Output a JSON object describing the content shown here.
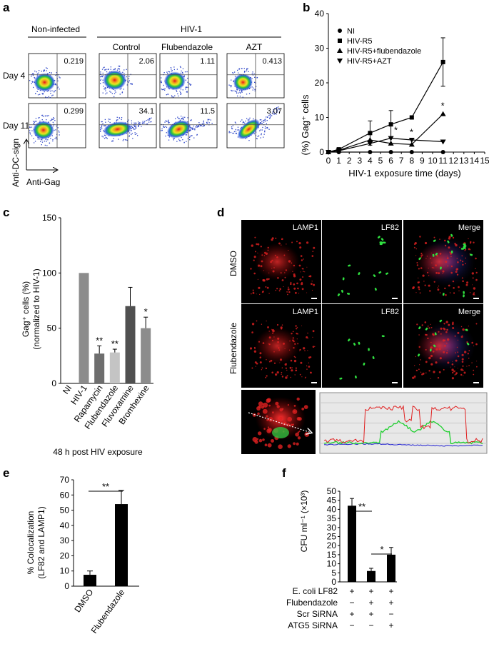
{
  "panels": {
    "a": {
      "label": "a",
      "header_noninfected": "Non-infected",
      "header_hiv": "HIV-1",
      "col_control": "Control",
      "col_flubendazole": "Flubendazole",
      "col_azt": "AZT",
      "row_day4": "Day 4",
      "row_day11": "Day 11",
      "y_axis_label": "Anti-DC-sign",
      "x_axis_label": "Anti-Gag",
      "day4_values": [
        "0.219",
        "2.06",
        "1.11",
        "0.413"
      ],
      "day11_values": [
        "0.299",
        "34.1",
        "11.5",
        "3.07"
      ]
    },
    "b": {
      "label": "b",
      "y_label": "(%) Gag⁺ cells",
      "x_label": "HIV-1 exposure time (days)",
      "legend": [
        "NI",
        "HIV-R5",
        "HIV-R5+flubendazole",
        "HIV-R5+AZT"
      ],
      "xticks": [
        "0",
        "1",
        "2",
        "3",
        "4",
        "5",
        "6",
        "7",
        "8",
        "9",
        "10",
        "11",
        "12",
        "13",
        "14",
        "15"
      ],
      "yticks": [
        "0",
        "10",
        "20",
        "30",
        "40"
      ],
      "asterisk": "*"
    },
    "c": {
      "label": "c",
      "y_label_line1": "Gag⁺ cells (%)",
      "y_label_line2": "(normalized to HIV-1)",
      "yticks": [
        "0",
        "50",
        "100",
        "150"
      ],
      "x_title": "48 h post HIV exposure",
      "stars": [
        "",
        "",
        "**",
        "**",
        "",
        "*"
      ]
    },
    "d": {
      "label": "d",
      "lamp1": "LAMP1",
      "lf82": "LF82",
      "merge": "Merge",
      "row_dmso": "DMSO",
      "row_flubendazole": "Flubendazole"
    },
    "e": {
      "label": "e",
      "y_label_line1": "% Colocalization",
      "y_label_line2": "(LF82 and LAMP1)",
      "yticks": [
        "0",
        "10",
        "20",
        "30",
        "40",
        "50",
        "60",
        "70"
      ],
      "sig": "**"
    },
    "f": {
      "label": "f",
      "y_label": "CFU ml⁻¹ (×10³)",
      "yticks": [
        "0",
        "5",
        "10",
        "15",
        "20",
        "25",
        "30",
        "35",
        "40",
        "45",
        "50"
      ],
      "sig1": "**",
      "sig2": "*",
      "row_labels": [
        "E. coli LF82",
        "Flubendazole",
        "Scr SiRNA",
        "ATG5 SiRNA"
      ],
      "row_signs": [
        [
          "+",
          "+",
          "+"
        ],
        [
          "−",
          "+",
          "+"
        ],
        [
          "+",
          "+",
          "−"
        ],
        [
          "−",
          "−",
          "+"
        ]
      ]
    }
  },
  "chart_data": [
    {
      "type": "line",
      "panel": "b",
      "xlabel": "HIV-1 exposure time (days)",
      "ylabel": "(%) Gag⁺ cells",
      "xlim": [
        0,
        15
      ],
      "ylim": [
        0,
        40
      ],
      "series": [
        {
          "name": "NI",
          "marker": "circle",
          "x": [
            0,
            1,
            4,
            6,
            8,
            11
          ],
          "y": [
            0,
            0,
            0,
            0,
            0,
            0
          ]
        },
        {
          "name": "HIV-R5",
          "marker": "square",
          "x": [
            0,
            1,
            4,
            6,
            8,
            11
          ],
          "y": [
            0,
            0.8,
            5.5,
            8,
            10,
            26
          ],
          "err": [
            0,
            0.3,
            3.5,
            4,
            0.4,
            7
          ]
        },
        {
          "name": "HIV-R5+flubendazole",
          "marker": "triangle-up",
          "x": [
            0,
            1,
            4,
            6,
            8,
            11
          ],
          "y": [
            0,
            0.5,
            3.5,
            2.5,
            2.2,
            11
          ]
        },
        {
          "name": "HIV-R5+AZT",
          "marker": "triangle-down",
          "x": [
            0,
            1,
            4,
            6,
            8,
            11
          ],
          "y": [
            0,
            0.4,
            2.5,
            4,
            3.5,
            3
          ]
        }
      ]
    },
    {
      "type": "bar",
      "panel": "c",
      "ylabel": "Gag⁺ cells (%) (normalized to HIV-1)",
      "ylim": [
        0,
        150
      ],
      "categories": [
        "NI",
        "HIV-1",
        "Rapamycin",
        "Flubendazole",
        "Fluvoxamine",
        "Bromhexine"
      ],
      "values": [
        0,
        100,
        27,
        28,
        70,
        50
      ],
      "errors": [
        0,
        0,
        7,
        3,
        17,
        10
      ],
      "colors": [
        "#888888",
        "#8c8c8c",
        "#6e6e6e",
        "#c4c4c4",
        "#505050",
        "#8c8c8c"
      ]
    },
    {
      "type": "bar",
      "panel": "e",
      "ylabel": "% Colocalization (LF82 and LAMP1)",
      "ylim": [
        0,
        70
      ],
      "categories": [
        "DMSO",
        "Flubendazole"
      ],
      "values": [
        7.5,
        54
      ],
      "errors": [
        2.5,
        9
      ]
    },
    {
      "type": "bar",
      "panel": "f",
      "ylabel": "CFU ml⁻¹ (×10³)",
      "ylim": [
        0,
        50
      ],
      "categories": [
        "1",
        "2",
        "3"
      ],
      "values": [
        42,
        6,
        15
      ],
      "errors": [
        4,
        1.5,
        4
      ]
    }
  ]
}
